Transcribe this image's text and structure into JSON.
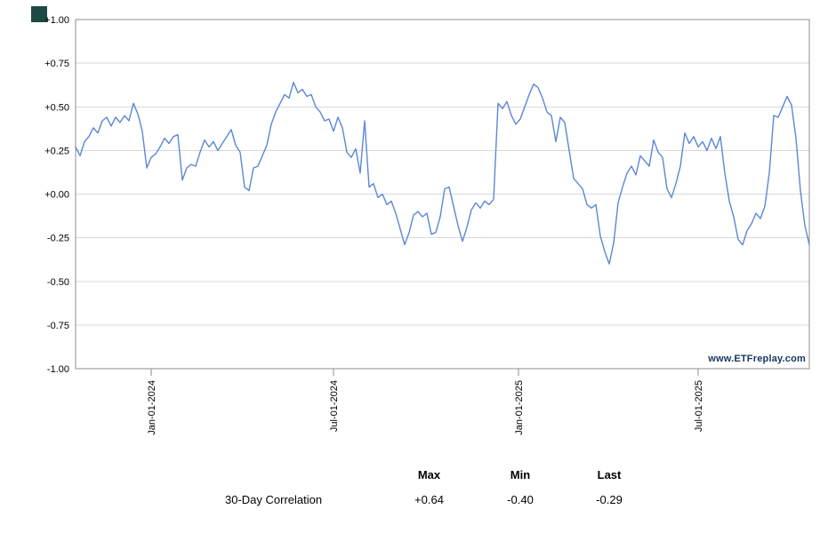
{
  "meta": {
    "watermark": "www.ETFreplay.com",
    "watermark_color": "#16365f",
    "logo_color": "#1d4a44",
    "grid_color": "#d9d9d9",
    "border_color": "#8c8c8c",
    "accent_color": "#5b87d5"
  },
  "chart_data": {
    "type": "line",
    "title": "",
    "xlabel": "",
    "ylabel": "",
    "ylim": [
      -1.0,
      1.0
    ],
    "grid": "horizontal",
    "legend": false,
    "y_ticks": [
      "+1.00",
      "+0.75",
      "+0.50",
      "+0.25",
      "+0.00",
      "-0.25",
      "-0.50",
      "-0.75",
      "-1.00"
    ],
    "x_ticks": [
      {
        "label": "Jan-01-2024",
        "pos": 0.103
      },
      {
        "label": "Jul-01-2024",
        "pos": 0.3515
      },
      {
        "label": "Jan-01-2025",
        "pos": 0.6036
      },
      {
        "label": "Jul-01-2025",
        "pos": 0.8485
      }
    ],
    "series": [
      {
        "name": "30-Day Correlation",
        "color": "#5b87d5",
        "values": [
          0.27,
          0.22,
          0.3,
          0.33,
          0.38,
          0.35,
          0.42,
          0.44,
          0.39,
          0.44,
          0.41,
          0.45,
          0.42,
          0.52,
          0.46,
          0.36,
          0.15,
          0.21,
          0.23,
          0.27,
          0.32,
          0.29,
          0.33,
          0.34,
          0.08,
          0.15,
          0.17,
          0.16,
          0.24,
          0.31,
          0.27,
          0.3,
          0.25,
          0.29,
          0.33,
          0.37,
          0.28,
          0.24,
          0.04,
          0.02,
          0.15,
          0.16,
          0.22,
          0.28,
          0.4,
          0.47,
          0.52,
          0.57,
          0.55,
          0.64,
          0.58,
          0.6,
          0.56,
          0.57,
          0.5,
          0.47,
          0.42,
          0.43,
          0.36,
          0.44,
          0.38,
          0.24,
          0.21,
          0.26,
          0.12,
          0.42,
          0.04,
          0.06,
          -0.02,
          0.0,
          -0.06,
          -0.04,
          -0.11,
          -0.2,
          -0.29,
          -0.22,
          -0.12,
          -0.1,
          -0.13,
          -0.11,
          -0.23,
          -0.22,
          -0.13,
          0.03,
          0.04,
          -0.07,
          -0.18,
          -0.27,
          -0.19,
          -0.09,
          -0.05,
          -0.08,
          -0.04,
          -0.06,
          -0.03,
          0.52,
          0.49,
          0.53,
          0.45,
          0.4,
          0.43,
          0.5,
          0.57,
          0.63,
          0.61,
          0.55,
          0.47,
          0.45,
          0.3,
          0.44,
          0.41,
          0.25,
          0.09,
          0.06,
          0.03,
          -0.06,
          -0.08,
          -0.06,
          -0.24,
          -0.33,
          -0.4,
          -0.28,
          -0.05,
          0.04,
          0.12,
          0.16,
          0.11,
          0.22,
          0.19,
          0.16,
          0.31,
          0.24,
          0.21,
          0.03,
          -0.02,
          0.06,
          0.16,
          0.35,
          0.29,
          0.33,
          0.27,
          0.3,
          0.25,
          0.32,
          0.26,
          0.33,
          0.12,
          -0.04,
          -0.13,
          -0.26,
          -0.29,
          -0.21,
          -0.17,
          -0.11,
          -0.14,
          -0.07,
          0.12,
          0.45,
          0.44,
          0.5,
          0.56,
          0.51,
          0.32,
          0.02,
          -0.18,
          -0.29
        ]
      }
    ]
  },
  "stats_table": {
    "columns": [
      "Max",
      "Min",
      "Last"
    ],
    "rows": [
      {
        "label": "30-Day Correlation",
        "max": "+0.64",
        "min": "-0.40",
        "last": "-0.29"
      }
    ]
  }
}
